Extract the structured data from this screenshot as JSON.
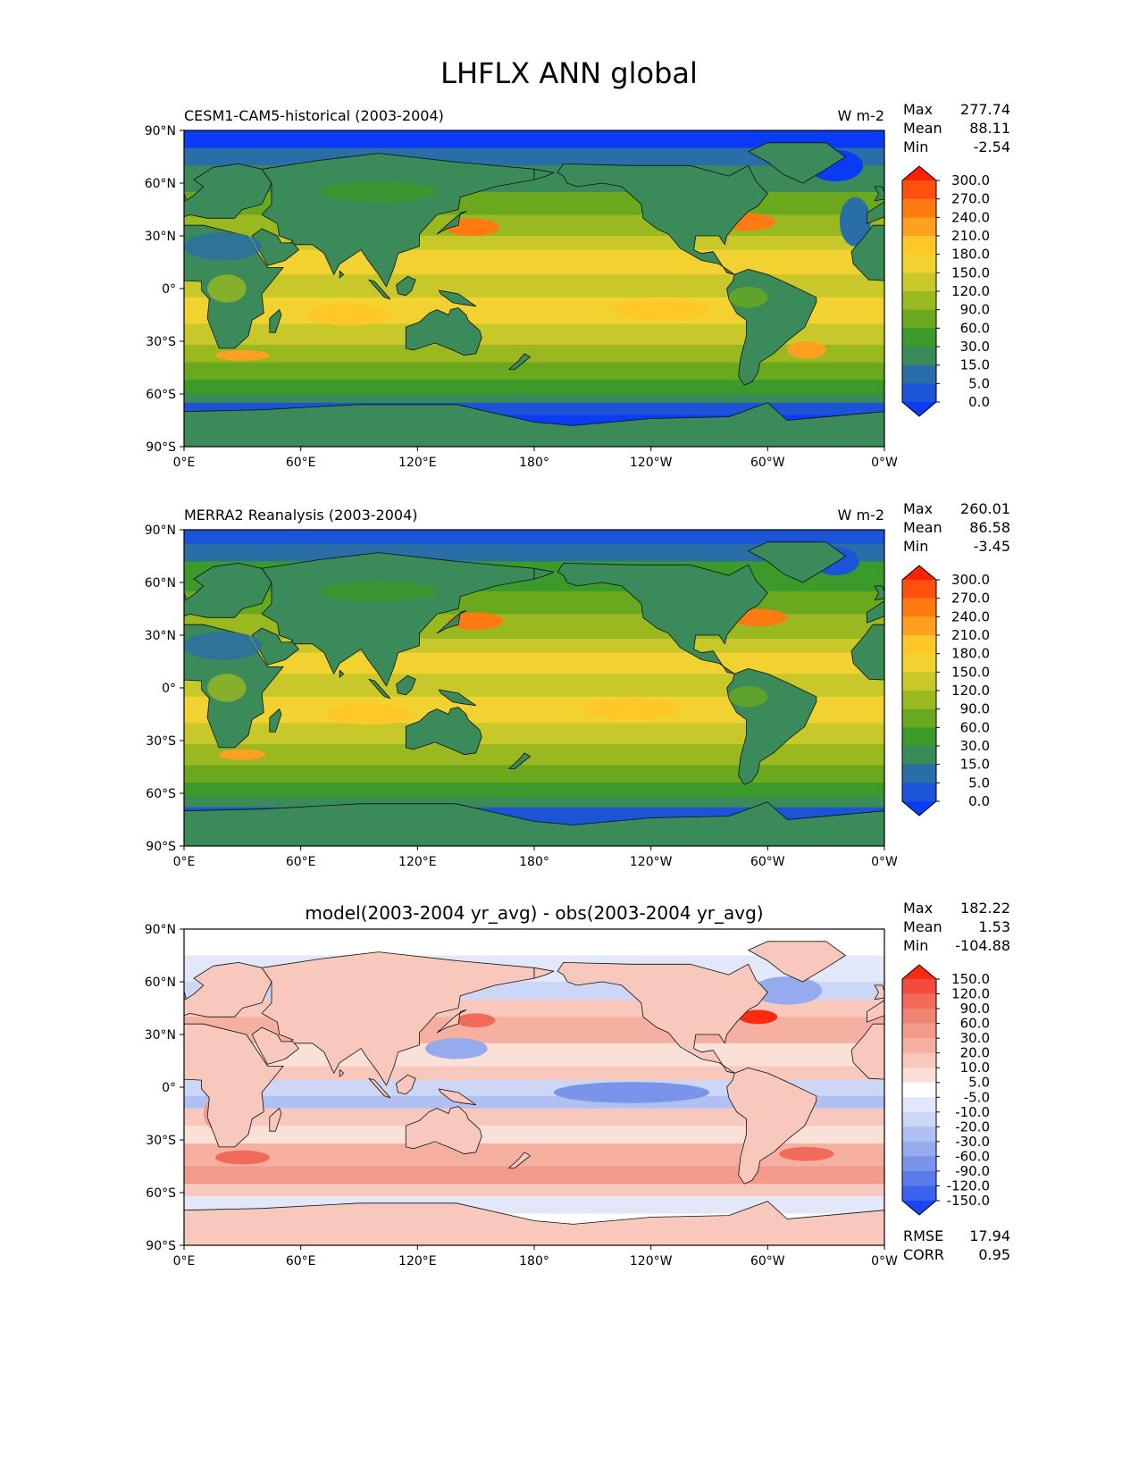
{
  "figure": {
    "title": "LHFLX ANN global"
  },
  "axes": {
    "lat_ticks": [
      "90°N",
      "60°N",
      "30°N",
      "0°",
      "30°S",
      "60°S",
      "90°S"
    ],
    "lon_ticks": [
      "0°E",
      "60°E",
      "120°E",
      "180°",
      "120°W",
      "60°W",
      "0°W"
    ]
  },
  "chart_data": [
    {
      "type": "heatmap",
      "title": "CESM1-CAM5-historical (2003-2004)",
      "units": "W m-2",
      "stats": [
        {
          "label": "Max",
          "value": "277.74"
        },
        {
          "label": "Mean",
          "value": "88.11"
        },
        {
          "label": "Min",
          "value": "-2.54"
        }
      ],
      "colorbar": {
        "levels": [
          "300.0",
          "270.0",
          "240.0",
          "210.0",
          "180.0",
          "150.0",
          "120.0",
          "90.0",
          "60.0",
          "30.0",
          "15.0",
          "5.0",
          "0.0"
        ],
        "colors": [
          "#ff2200",
          "#ff5010",
          "#ff7a10",
          "#ffa020",
          "#ffc828",
          "#f2d230",
          "#c8c82a",
          "#9ab820",
          "#6aa81e",
          "#3a9a2a",
          "#3a8a5a",
          "#2a6ea8",
          "#1c54d8",
          "#0a3cf6"
        ]
      }
    },
    {
      "type": "heatmap",
      "title": "MERRA2 Reanalysis (2003-2004)",
      "units": "W m-2",
      "stats": [
        {
          "label": "Max",
          "value": "260.01"
        },
        {
          "label": "Mean",
          "value": "86.58"
        },
        {
          "label": "Min",
          "value": "-3.45"
        }
      ],
      "colorbar": {
        "levels": [
          "300.0",
          "270.0",
          "240.0",
          "210.0",
          "180.0",
          "150.0",
          "120.0",
          "90.0",
          "60.0",
          "30.0",
          "15.0",
          "5.0",
          "0.0"
        ],
        "colors": [
          "#ff2200",
          "#ff5010",
          "#ff7a10",
          "#ffa020",
          "#ffc828",
          "#f2d230",
          "#c8c82a",
          "#9ab820",
          "#6aa81e",
          "#3a9a2a",
          "#3a8a5a",
          "#2a6ea8",
          "#1c54d8",
          "#0a3cf6"
        ]
      }
    },
    {
      "type": "heatmap",
      "title": "model(2003-2004 yr_avg) - obs(2003-2004 yr_avg)",
      "units": "",
      "stats": [
        {
          "label": "Max",
          "value": "182.22"
        },
        {
          "label": "Mean",
          "value": "1.53"
        },
        {
          "label": "Min",
          "value": "-104.88"
        }
      ],
      "colorbar": {
        "levels": [
          "150.0",
          "120.0",
          "90.0",
          "60.0",
          "30.0",
          "20.0",
          "10.0",
          "5.0",
          "-5.0",
          "-10.0",
          "-20.0",
          "-30.0",
          "-60.0",
          "-90.0",
          "-120.0",
          "-150.0"
        ],
        "colors": [
          "#ff2a10",
          "#f24c3c",
          "#f26a5a",
          "#f08472",
          "#f49a8a",
          "#f6b0a2",
          "#f8c8bc",
          "#fbe0d8",
          "#ffffff",
          "#e2e8fa",
          "#ccd6f6",
          "#b0c0f2",
          "#96aaee",
          "#7a94ea",
          "#5a7cea",
          "#3a64ee",
          "#1a46f6"
        ]
      },
      "footer": [
        {
          "label": "RMSE",
          "value": "17.94"
        },
        {
          "label": "CORR",
          "value": "0.95"
        }
      ]
    }
  ]
}
